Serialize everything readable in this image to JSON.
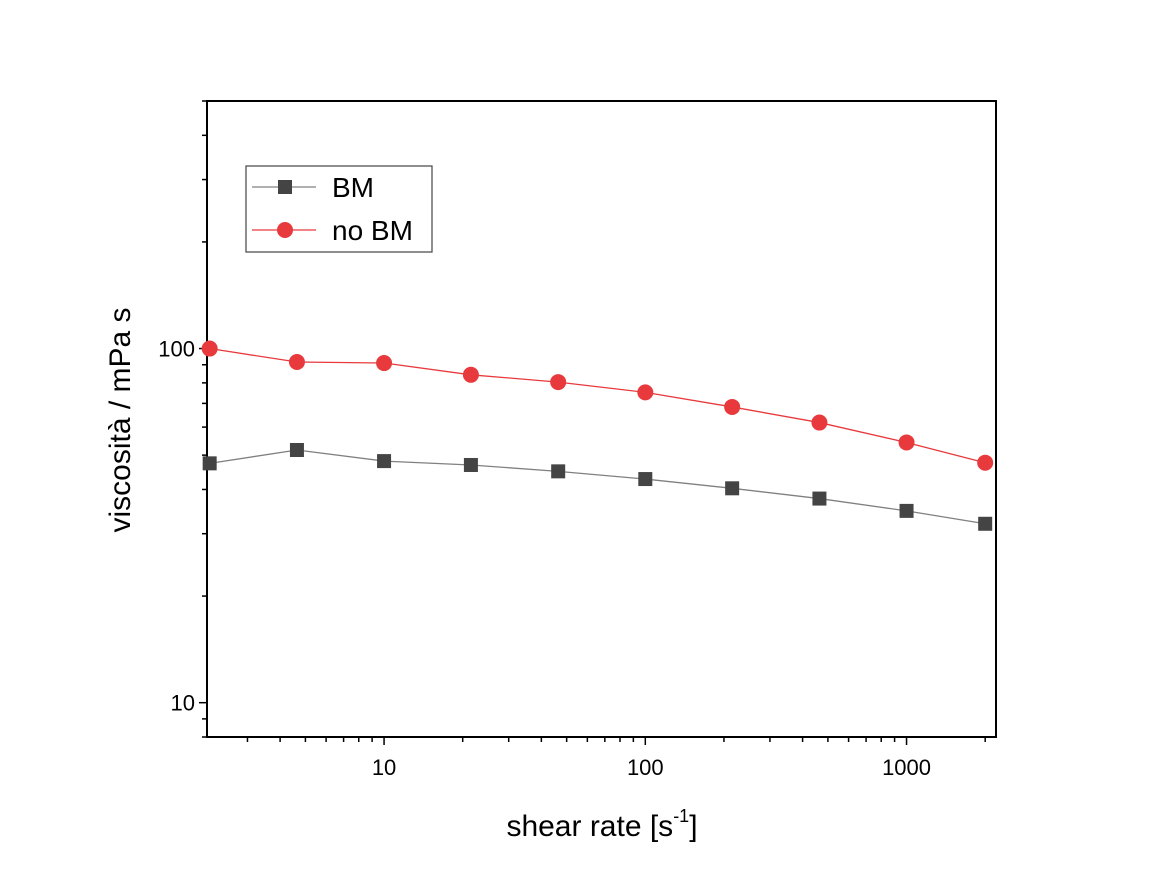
{
  "chart_data": {
    "type": "line",
    "xlabel": "shear rate [s",
    "xlabel_sup": "-1",
    "xlabel_end": "]",
    "ylabel": "viscosità / mPa s",
    "x_scale": "log",
    "y_scale": "log",
    "xlim": [
      2.1,
      2200
    ],
    "ylim": [
      8,
      500
    ],
    "x_ticks": [
      10,
      100,
      1000
    ],
    "x_tick_labels": [
      "10",
      "100",
      "1000"
    ],
    "y_ticks": [
      10,
      100
    ],
    "y_tick_labels": [
      "10",
      "100"
    ],
    "grid": false,
    "legend_position": "top-left",
    "series": [
      {
        "name": "BM",
        "marker": "square",
        "color": "#444444",
        "line_color": "#808080",
        "x": [
          2.15,
          4.64,
          10,
          21.5,
          46.4,
          100,
          215,
          464,
          1000,
          2000
        ],
        "y": [
          47.4,
          51.7,
          48.1,
          46.9,
          45.0,
          42.8,
          40.3,
          37.7,
          34.8,
          32.0
        ]
      },
      {
        "name": "no BM",
        "marker": "circle",
        "color": "#e8393c",
        "line_color": "#e8393c",
        "x": [
          2.15,
          4.64,
          10,
          21.5,
          46.4,
          100,
          215,
          464,
          1000,
          2000
        ],
        "y": [
          100,
          91.6,
          91.0,
          84.3,
          80.4,
          75.2,
          68.4,
          61.8,
          54.3,
          47.6
        ]
      }
    ]
  }
}
